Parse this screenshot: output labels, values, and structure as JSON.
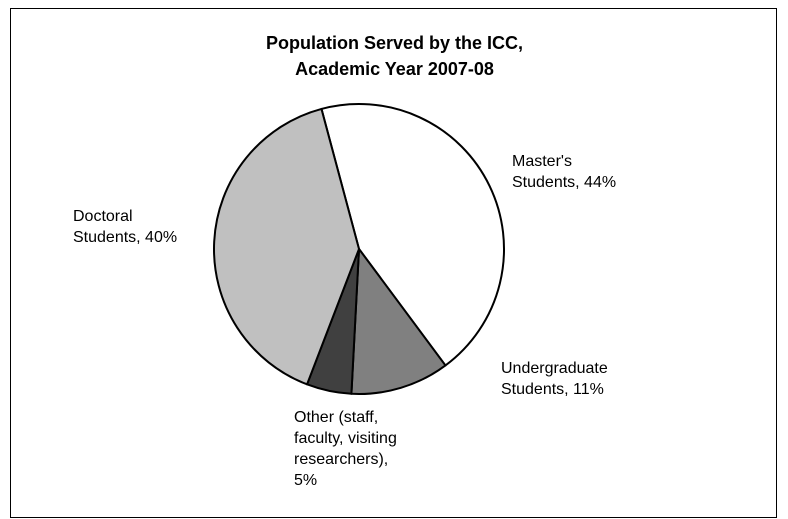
{
  "chart_data": {
    "type": "pie",
    "title": [
      "Population Served by the ICC,",
      "Academic Year 2007-08"
    ],
    "slices": [
      {
        "name": "Master's Students",
        "value": 44,
        "label_lines": [
          "Master's",
          "Students, 44%"
        ],
        "color": "#ffffff"
      },
      {
        "name": "Undergraduate Students",
        "value": 11,
        "label_lines": [
          "Undergraduate",
          "Students, 11%"
        ],
        "color": "#808080"
      },
      {
        "name": "Other (staff, faculty, visiting researchers)",
        "value": 5,
        "label_lines": [
          "Other (staff,",
          "faculty, visiting",
          "researchers),",
          "5%"
        ],
        "color": "#404040"
      },
      {
        "name": "Doctoral Students",
        "value": 40,
        "label_lines": [
          "Doctoral",
          "Students, 40%"
        ],
        "color": "#c0c0c0"
      }
    ],
    "legend": "none"
  }
}
